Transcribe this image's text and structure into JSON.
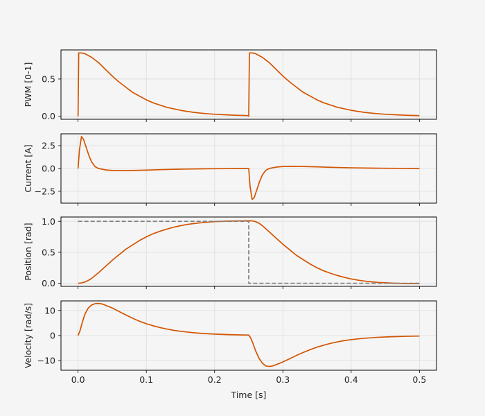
{
  "chart_data": {
    "type": "line",
    "xlabel": "Time [s]",
    "xlim": [
      -0.025,
      0.525
    ],
    "x_ticks": [
      0.0,
      0.1,
      0.2,
      0.3,
      0.4,
      0.5
    ],
    "x_tick_labels": [
      "0.0",
      "0.1",
      "0.2",
      "0.3",
      "0.4",
      "0.5"
    ],
    "grid": true,
    "colors": {
      "signal": "#d35400",
      "reference": "#808080"
    },
    "panels": [
      {
        "id": "pwm",
        "ylabel": "PWM [0-1]",
        "ylim": [
          -0.04,
          0.89
        ],
        "y_ticks": [
          0.0,
          0.5
        ],
        "y_tick_labels": [
          "0.0",
          "0.5"
        ],
        "series": [
          {
            "role": "signal",
            "points": [
              [
                0.0,
                0.0
              ],
              [
                0.001,
                0.85
              ],
              [
                0.005,
                0.85
              ],
              [
                0.01,
                0.84
              ],
              [
                0.02,
                0.79
              ],
              [
                0.03,
                0.72
              ],
              [
                0.04,
                0.63
              ],
              [
                0.05,
                0.54
              ],
              [
                0.06,
                0.46
              ],
              [
                0.07,
                0.39
              ],
              [
                0.08,
                0.32
              ],
              [
                0.09,
                0.27
              ],
              [
                0.1,
                0.22
              ],
              [
                0.11,
                0.18
              ],
              [
                0.12,
                0.15
              ],
              [
                0.13,
                0.12
              ],
              [
                0.14,
                0.1
              ],
              [
                0.15,
                0.08
              ],
              [
                0.16,
                0.065
              ],
              [
                0.17,
                0.052
              ],
              [
                0.18,
                0.042
              ],
              [
                0.19,
                0.034
              ],
              [
                0.2,
                0.027
              ],
              [
                0.21,
                0.022
              ],
              [
                0.22,
                0.018
              ],
              [
                0.23,
                0.014
              ],
              [
                0.24,
                0.011
              ],
              [
                0.249,
                0.009
              ],
              [
                0.25,
                0.0
              ],
              [
                0.251,
                0.85
              ],
              [
                0.255,
                0.85
              ],
              [
                0.26,
                0.84
              ],
              [
                0.27,
                0.79
              ],
              [
                0.28,
                0.72
              ],
              [
                0.29,
                0.63
              ],
              [
                0.3,
                0.54
              ],
              [
                0.31,
                0.46
              ],
              [
                0.32,
                0.39
              ],
              [
                0.33,
                0.32
              ],
              [
                0.34,
                0.27
              ],
              [
                0.35,
                0.22
              ],
              [
                0.36,
                0.18
              ],
              [
                0.37,
                0.15
              ],
              [
                0.38,
                0.12
              ],
              [
                0.39,
                0.1
              ],
              [
                0.4,
                0.08
              ],
              [
                0.41,
                0.065
              ],
              [
                0.42,
                0.052
              ],
              [
                0.43,
                0.042
              ],
              [
                0.44,
                0.034
              ],
              [
                0.45,
                0.027
              ],
              [
                0.46,
                0.022
              ],
              [
                0.47,
                0.018
              ],
              [
                0.48,
                0.014
              ],
              [
                0.49,
                0.011
              ],
              [
                0.5,
                0.009
              ]
            ]
          }
        ]
      },
      {
        "id": "current",
        "ylabel": "Current [A]",
        "ylim": [
          -3.8,
          3.8
        ],
        "y_ticks": [
          -2.5,
          0.0,
          2.5
        ],
        "y_tick_labels": [
          "−2.5",
          "0.0",
          "2.5"
        ],
        "series": [
          {
            "role": "signal",
            "points": [
              [
                0.0,
                0.0
              ],
              [
                0.002,
                2.0
              ],
              [
                0.005,
                3.5
              ],
              [
                0.008,
                3.2
              ],
              [
                0.012,
                2.3
              ],
              [
                0.016,
                1.4
              ],
              [
                0.02,
                0.7
              ],
              [
                0.025,
                0.2
              ],
              [
                0.03,
                0.0
              ],
              [
                0.04,
                -0.15
              ],
              [
                0.05,
                -0.22
              ],
              [
                0.06,
                -0.24
              ],
              [
                0.08,
                -0.22
              ],
              [
                0.1,
                -0.18
              ],
              [
                0.12,
                -0.13
              ],
              [
                0.14,
                -0.09
              ],
              [
                0.16,
                -0.06
              ],
              [
                0.18,
                -0.04
              ],
              [
                0.2,
                -0.025
              ],
              [
                0.22,
                -0.015
              ],
              [
                0.24,
                -0.01
              ],
              [
                0.25,
                -0.005
              ],
              [
                0.252,
                -2.0
              ],
              [
                0.255,
                -3.4
              ],
              [
                0.258,
                -3.2
              ],
              [
                0.262,
                -2.3
              ],
              [
                0.266,
                -1.4
              ],
              [
                0.27,
                -0.7
              ],
              [
                0.275,
                -0.2
              ],
              [
                0.28,
                0.0
              ],
              [
                0.29,
                0.15
              ],
              [
                0.3,
                0.22
              ],
              [
                0.31,
                0.24
              ],
              [
                0.33,
                0.22
              ],
              [
                0.35,
                0.18
              ],
              [
                0.37,
                0.13
              ],
              [
                0.39,
                0.09
              ],
              [
                0.41,
                0.06
              ],
              [
                0.43,
                0.04
              ],
              [
                0.45,
                0.025
              ],
              [
                0.47,
                0.015
              ],
              [
                0.5,
                0.008
              ]
            ]
          }
        ]
      },
      {
        "id": "position",
        "ylabel": "Position [rad]",
        "ylim": [
          -0.05,
          1.07
        ],
        "y_ticks": [
          0.0,
          0.5,
          1.0
        ],
        "y_tick_labels": [
          "0.0",
          "0.5",
          "1.0"
        ],
        "series": [
          {
            "role": "signal",
            "points": [
              [
                0.0,
                0.0
              ],
              [
                0.005,
                0.005
              ],
              [
                0.01,
                0.02
              ],
              [
                0.015,
                0.045
              ],
              [
                0.02,
                0.08
              ],
              [
                0.03,
                0.17
              ],
              [
                0.04,
                0.27
              ],
              [
                0.05,
                0.37
              ],
              [
                0.06,
                0.46
              ],
              [
                0.07,
                0.55
              ],
              [
                0.08,
                0.62
              ],
              [
                0.09,
                0.69
              ],
              [
                0.1,
                0.75
              ],
              [
                0.11,
                0.8
              ],
              [
                0.12,
                0.84
              ],
              [
                0.13,
                0.875
              ],
              [
                0.14,
                0.905
              ],
              [
                0.15,
                0.93
              ],
              [
                0.16,
                0.95
              ],
              [
                0.17,
                0.965
              ],
              [
                0.18,
                0.977
              ],
              [
                0.19,
                0.987
              ],
              [
                0.2,
                0.995
              ],
              [
                0.22,
                1.004
              ],
              [
                0.24,
                1.008
              ],
              [
                0.25,
                1.01
              ],
              [
                0.255,
                1.008
              ],
              [
                0.26,
                0.995
              ],
              [
                0.265,
                0.97
              ],
              [
                0.27,
                0.93
              ],
              [
                0.28,
                0.83
              ],
              [
                0.29,
                0.73
              ],
              [
                0.3,
                0.63
              ],
              [
                0.31,
                0.54
              ],
              [
                0.32,
                0.45
              ],
              [
                0.33,
                0.38
              ],
              [
                0.34,
                0.31
              ],
              [
                0.35,
                0.25
              ],
              [
                0.36,
                0.2
              ],
              [
                0.37,
                0.16
              ],
              [
                0.38,
                0.125
              ],
              [
                0.39,
                0.095
              ],
              [
                0.4,
                0.07
              ],
              [
                0.41,
                0.05
              ],
              [
                0.42,
                0.035
              ],
              [
                0.43,
                0.023
              ],
              [
                0.44,
                0.013
              ],
              [
                0.45,
                0.007
              ],
              [
                0.46,
                0.002
              ],
              [
                0.47,
                -0.002
              ],
              [
                0.48,
                -0.004
              ],
              [
                0.49,
                -0.005
              ],
              [
                0.5,
                -0.006
              ]
            ]
          },
          {
            "role": "reference",
            "points": [
              [
                0.0,
                1.0
              ],
              [
                0.25,
                1.0
              ],
              [
                0.25,
                0.0
              ],
              [
                0.5,
                0.0
              ]
            ]
          }
        ]
      },
      {
        "id": "velocity",
        "ylabel": "Velocity [rad/s]",
        "ylim": [
          -13.8,
          13.8
        ],
        "y_ticks": [
          -10,
          0,
          10
        ],
        "y_tick_labels": [
          "−10",
          "0",
          "10"
        ],
        "series": [
          {
            "role": "signal",
            "points": [
              [
                0.0,
                0.0
              ],
              [
                0.003,
                2.0
              ],
              [
                0.006,
                5.0
              ],
              [
                0.01,
                8.5
              ],
              [
                0.015,
                11.0
              ],
              [
                0.02,
                12.2
              ],
              [
                0.025,
                12.7
              ],
              [
                0.03,
                12.8
              ],
              [
                0.035,
                12.6
              ],
              [
                0.04,
                12.1
              ],
              [
                0.05,
                11.0
              ],
              [
                0.06,
                9.6
              ],
              [
                0.07,
                8.2
              ],
              [
                0.08,
                6.9
              ],
              [
                0.09,
                5.7
              ],
              [
                0.1,
                4.7
              ],
              [
                0.11,
                3.9
              ],
              [
                0.12,
                3.2
              ],
              [
                0.13,
                2.6
              ],
              [
                0.14,
                2.1
              ],
              [
                0.15,
                1.7
              ],
              [
                0.16,
                1.4
              ],
              [
                0.17,
                1.1
              ],
              [
                0.18,
                0.9
              ],
              [
                0.19,
                0.72
              ],
              [
                0.2,
                0.58
              ],
              [
                0.22,
                0.38
              ],
              [
                0.24,
                0.24
              ],
              [
                0.25,
                0.2
              ],
              [
                0.253,
                -1.0
              ],
              [
                0.256,
                -3.0
              ],
              [
                0.26,
                -6.0
              ],
              [
                0.265,
                -9.0
              ],
              [
                0.27,
                -11.0
              ],
              [
                0.275,
                -12.1
              ],
              [
                0.28,
                -12.3
              ],
              [
                0.285,
                -12.1
              ],
              [
                0.29,
                -11.6
              ],
              [
                0.3,
                -10.5
              ],
              [
                0.31,
                -9.2
              ],
              [
                0.32,
                -7.9
              ],
              [
                0.33,
                -6.7
              ],
              [
                0.34,
                -5.6
              ],
              [
                0.35,
                -4.6
              ],
              [
                0.36,
                -3.8
              ],
              [
                0.37,
                -3.1
              ],
              [
                0.38,
                -2.5
              ],
              [
                0.39,
                -2.0
              ],
              [
                0.4,
                -1.6
              ],
              [
                0.42,
                -1.05
              ],
              [
                0.44,
                -0.68
              ],
              [
                0.46,
                -0.44
              ],
              [
                0.48,
                -0.29
              ],
              [
                0.5,
                -0.19
              ]
            ]
          }
        ]
      }
    ]
  }
}
